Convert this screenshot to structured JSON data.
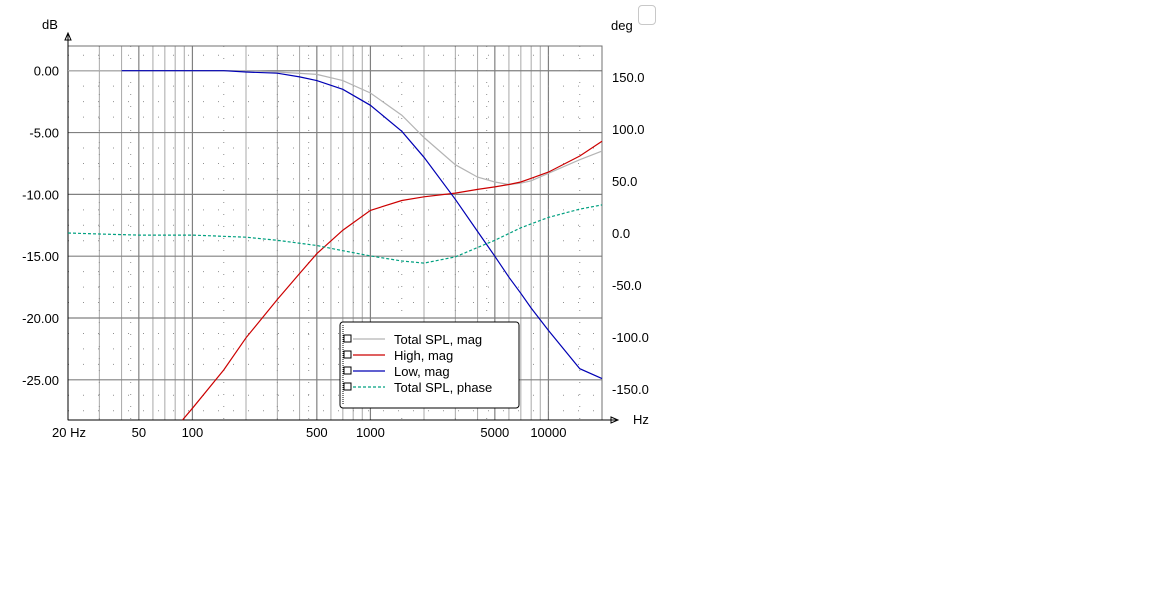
{
  "chart_data": {
    "type": "line",
    "x_scale": "log",
    "xlim": [
      20,
      20000
    ],
    "ylim_left": [
      -28.25,
      2
    ],
    "ylim_right": [
      -180,
      180
    ],
    "y_left_unit": "dB",
    "y_right_unit": "deg",
    "x_unit": "Hz",
    "x_tick_labels": [
      {
        "value": 20,
        "label": "20 Hz"
      },
      {
        "value": 50,
        "label": "50"
      },
      {
        "value": 100,
        "label": "100"
      },
      {
        "value": 500,
        "label": "500"
      },
      {
        "value": 1000,
        "label": "1000"
      },
      {
        "value": 5000,
        "label": "5000"
      },
      {
        "value": 10000,
        "label": "10000"
      }
    ],
    "y_left_ticks": [
      {
        "value": 0,
        "label": "0.00"
      },
      {
        "value": -5,
        "label": "-5.00"
      },
      {
        "value": -10,
        "label": "-10.00"
      },
      {
        "value": -15,
        "label": "-15.00"
      },
      {
        "value": -20,
        "label": "-20.00"
      },
      {
        "value": -25,
        "label": "-25.00"
      }
    ],
    "y_right_ticks": [
      {
        "value": 150,
        "label": "150.0"
      },
      {
        "value": 100,
        "label": "100.0"
      },
      {
        "value": 50,
        "label": "50.0"
      },
      {
        "value": 0,
        "label": "0.0"
      },
      {
        "value": -50,
        "label": "-50.0"
      },
      {
        "value": -100,
        "label": "-100.0"
      },
      {
        "value": -150,
        "label": "-150.0"
      }
    ],
    "grid": true,
    "legend_position": "bottom-center",
    "series": [
      {
        "name": "Total SPL, mag",
        "color": "#b4b4b4",
        "axis": "left",
        "style": "solid",
        "points": [
          [
            20,
            0
          ],
          [
            40,
            0
          ],
          [
            100,
            0
          ],
          [
            200,
            0
          ],
          [
            300,
            -0.1
          ],
          [
            500,
            -0.3
          ],
          [
            700,
            -0.8
          ],
          [
            1000,
            -1.8
          ],
          [
            1500,
            -3.6
          ],
          [
            2000,
            -5.4
          ],
          [
            3000,
            -7.6
          ],
          [
            4000,
            -8.6
          ],
          [
            5000,
            -9.0
          ],
          [
            6000,
            -9.2
          ],
          [
            7000,
            -9.1
          ],
          [
            8000,
            -8.9
          ],
          [
            10000,
            -8.3
          ],
          [
            15000,
            -7.2
          ],
          [
            20000,
            -6.5
          ]
        ]
      },
      {
        "name": "High, mag",
        "color": "#cc0000",
        "axis": "left",
        "style": "solid",
        "points": [
          [
            88,
            -28.25
          ],
          [
            100,
            -27.3
          ],
          [
            150,
            -24.2
          ],
          [
            200,
            -21.6
          ],
          [
            300,
            -18.5
          ],
          [
            400,
            -16.4
          ],
          [
            500,
            -14.8
          ],
          [
            700,
            -12.9
          ],
          [
            1000,
            -11.3
          ],
          [
            1500,
            -10.5
          ],
          [
            2000,
            -10.2
          ],
          [
            3000,
            -9.9
          ],
          [
            4000,
            -9.6
          ],
          [
            5000,
            -9.4
          ],
          [
            6000,
            -9.2
          ],
          [
            7000,
            -9.0
          ],
          [
            8000,
            -8.7
          ],
          [
            10000,
            -8.2
          ],
          [
            15000,
            -6.9
          ],
          [
            20000,
            -5.7
          ]
        ]
      },
      {
        "name": "Low, mag",
        "color": "#0000b4",
        "axis": "left",
        "style": "solid",
        "points": [
          [
            40,
            0
          ],
          [
            80,
            0
          ],
          [
            100,
            0
          ],
          [
            150,
            0
          ],
          [
            200,
            -0.1
          ],
          [
            300,
            -0.2
          ],
          [
            400,
            -0.5
          ],
          [
            500,
            -0.8
          ],
          [
            700,
            -1.5
          ],
          [
            1000,
            -2.8
          ],
          [
            1500,
            -4.9
          ],
          [
            2000,
            -7.0
          ],
          [
            3000,
            -10.4
          ],
          [
            4000,
            -13.0
          ],
          [
            5000,
            -15.0
          ],
          [
            6000,
            -16.7
          ],
          [
            7000,
            -18.0
          ],
          [
            8000,
            -19.2
          ],
          [
            10000,
            -21.0
          ],
          [
            15000,
            -24.1
          ],
          [
            20000,
            -24.9
          ]
        ]
      },
      {
        "name": "Total SPL, phase",
        "color": "#00a080",
        "axis": "right",
        "style": "dashed",
        "points": [
          [
            20,
            0
          ],
          [
            30,
            -1
          ],
          [
            50,
            -2
          ],
          [
            100,
            -2
          ],
          [
            200,
            -4
          ],
          [
            300,
            -7
          ],
          [
            500,
            -12
          ],
          [
            700,
            -17
          ],
          [
            1000,
            -22
          ],
          [
            1500,
            -27
          ],
          [
            2000,
            -29
          ],
          [
            3000,
            -23
          ],
          [
            4000,
            -14
          ],
          [
            5000,
            -7
          ],
          [
            7000,
            5
          ],
          [
            10000,
            15
          ],
          [
            15000,
            23
          ],
          [
            20000,
            27
          ]
        ]
      }
    ]
  }
}
